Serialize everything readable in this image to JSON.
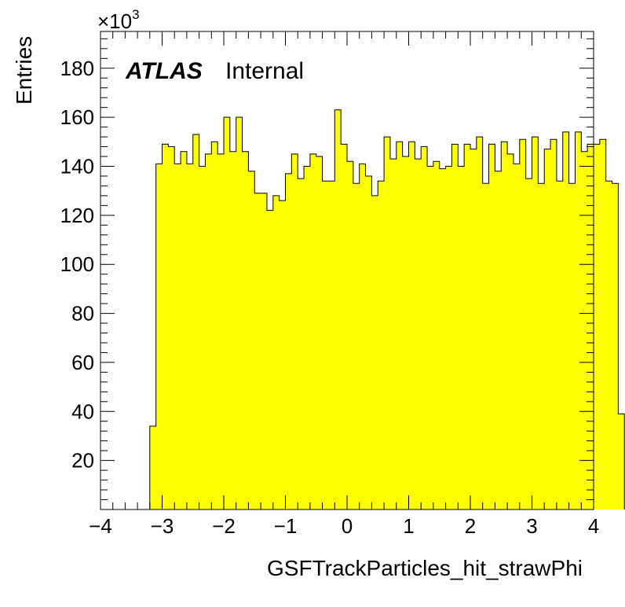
{
  "chart_data": {
    "type": "histogram",
    "xlabel": "GSFTrackParticles_hit_strawPhi",
    "ylabel": "Entries",
    "y_multiplier_base": "×10",
    "y_multiplier_exp": "3",
    "label_main": "ATLAS",
    "label_sub": "Internal",
    "xlim": [
      -4,
      4
    ],
    "ylim": [
      0,
      195
    ],
    "x_ticks": [
      -4,
      -3,
      -2,
      -1,
      0,
      1,
      2,
      3,
      4
    ],
    "x_tick_labels": [
      "−4",
      "−3",
      "−2",
      "−1",
      "0",
      "1",
      "2",
      "3",
      "4"
    ],
    "y_ticks": [
      20,
      40,
      60,
      80,
      100,
      120,
      140,
      160,
      180
    ],
    "y_tick_labels": [
      "20",
      "40",
      "60",
      "80",
      "100",
      "120",
      "140",
      "160",
      "180"
    ],
    "fill_color": "#ffff00",
    "line_color": "#000000",
    "bin_start": -3.2,
    "bin_width": 0.1,
    "values": [
      34,
      141,
      149,
      148,
      141,
      146,
      141,
      153,
      140,
      145,
      150,
      145,
      160,
      146,
      160,
      146,
      138,
      129,
      129,
      122,
      128,
      126,
      137,
      145,
      135,
      140,
      145,
      144,
      134,
      134,
      163,
      149,
      142,
      133,
      141,
      136,
      128,
      134,
      152,
      143,
      150,
      144,
      150,
      143,
      148,
      140,
      142,
      139,
      140,
      149,
      140,
      149,
      147,
      152,
      133,
      149,
      138,
      150,
      145,
      141,
      151,
      135,
      152,
      133,
      147,
      151,
      134,
      154,
      133,
      154,
      146,
      149,
      149,
      151,
      134,
      133,
      39
    ]
  }
}
